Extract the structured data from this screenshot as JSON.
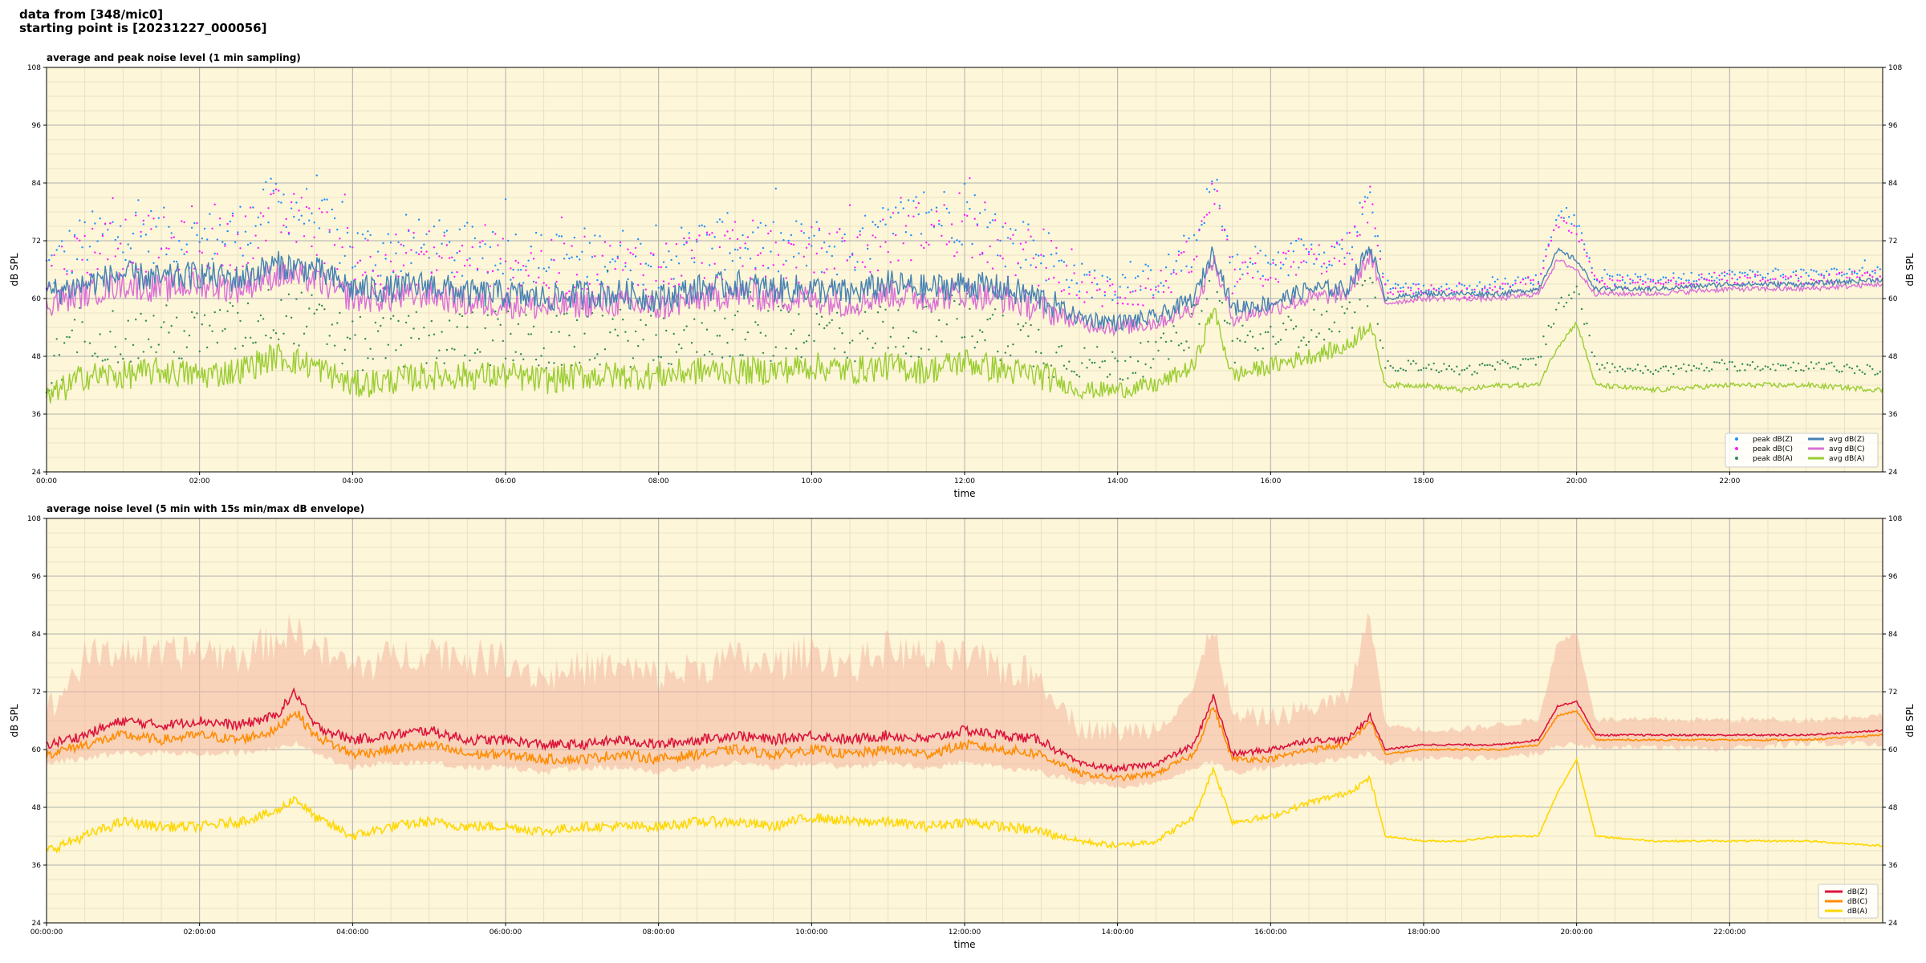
{
  "header": {
    "line1": "data from [348/mic0]",
    "line2": "starting point is [20231227_000056]"
  },
  "colors": {
    "plot_bg": "#fdf6d8",
    "peak_z": "#1e90ff",
    "peak_c": "#ff1aff",
    "peak_a": "#2e8b57",
    "avg_z": "#4682b4",
    "avg_c": "#da70d6",
    "avg_a": "#9acd32",
    "db_z": "#dc143c",
    "db_c": "#ff8c00",
    "db_a": "#ffd700",
    "envelope": "#f4b6a0"
  },
  "chart_data": [
    {
      "type": "line",
      "title": "average and peak noise level (1 min sampling)",
      "xlabel": "time",
      "ylabel": "dB SPL",
      "ylabel_right": "dB SPL",
      "ylim": [
        24,
        108
      ],
      "yticks": [
        "24",
        "36",
        "48",
        "60",
        "72",
        "84",
        "96",
        "108"
      ],
      "xlim": [
        0,
        24
      ],
      "xticks": [
        "00:00",
        "02:00",
        "04:00",
        "06:00",
        "08:00",
        "10:00",
        "12:00",
        "14:00",
        "16:00",
        "18:00",
        "20:00",
        "22:00"
      ],
      "grid": true,
      "legend_position": "lower-right",
      "legend": [
        "peak dB(Z)",
        "peak dB(C)",
        "peak dB(A)",
        "avg dB(Z)",
        "avg dB(C)",
        "avg dB(A)"
      ],
      "x": [
        0,
        0.5,
        1,
        1.5,
        2,
        2.5,
        3,
        3.5,
        4,
        4.5,
        5,
        5.5,
        6,
        6.5,
        7,
        7.5,
        8,
        8.5,
        9,
        9.5,
        10,
        10.5,
        11,
        11.5,
        12,
        12.5,
        13,
        13.5,
        14,
        14.5,
        15,
        15.25,
        15.5,
        16,
        16.5,
        17,
        17.3,
        17.5,
        18,
        18.5,
        19,
        19.5,
        19.75,
        20,
        20.25,
        21,
        22,
        23,
        24
      ],
      "series": [
        {
          "name": "avg dB(Z)",
          "style": "line",
          "values": [
            61,
            63,
            65,
            64,
            65,
            64,
            67,
            66,
            62,
            62,
            63,
            61,
            61,
            60,
            61,
            61,
            60,
            62,
            63,
            62,
            62,
            61,
            63,
            62,
            63,
            62,
            60,
            56,
            55,
            56,
            60,
            70,
            58,
            59,
            62,
            62,
            71,
            60,
            61,
            61,
            61,
            62,
            70,
            68,
            62,
            62,
            63,
            63,
            64
          ]
        },
        {
          "name": "avg dB(C)",
          "style": "line",
          "values": [
            59,
            61,
            63,
            62,
            63,
            62,
            65,
            64,
            60,
            60,
            61,
            59,
            59,
            58,
            59,
            59,
            58,
            60,
            61,
            60,
            60,
            59,
            61,
            60,
            61,
            60,
            58,
            55,
            54,
            55,
            58,
            68,
            56,
            58,
            60,
            61,
            69,
            59,
            60,
            60,
            60,
            61,
            68,
            66,
            61,
            61,
            62,
            62,
            63
          ]
        },
        {
          "name": "avg dB(A)",
          "style": "line",
          "values": [
            39,
            44,
            44,
            45,
            44,
            45,
            48,
            46,
            42,
            43,
            44,
            44,
            44,
            43,
            44,
            44,
            44,
            45,
            45,
            45,
            46,
            45,
            46,
            45,
            47,
            45,
            44,
            41,
            41,
            42,
            46,
            58,
            44,
            46,
            48,
            50,
            55,
            42,
            42,
            41,
            42,
            42,
            50,
            55,
            42,
            41,
            42,
            42,
            41
          ]
        },
        {
          "name": "peak dB(Z)",
          "style": "points",
          "values": [
            66,
            72,
            74,
            73,
            72,
            74,
            80,
            77,
            70,
            70,
            71,
            69,
            70,
            68,
            69,
            69,
            68,
            71,
            72,
            70,
            71,
            70,
            74,
            78,
            77,
            72,
            70,
            64,
            63,
            64,
            70,
            84,
            66,
            67,
            70,
            70,
            82,
            63,
            62,
            62,
            63,
            64,
            78,
            76,
            64,
            64,
            65,
            65,
            66
          ]
        },
        {
          "name": "peak dB(C)",
          "style": "points",
          "values": [
            64,
            70,
            72,
            71,
            70,
            72,
            77,
            75,
            68,
            68,
            69,
            67,
            68,
            66,
            67,
            67,
            66,
            69,
            70,
            68,
            69,
            68,
            72,
            75,
            74,
            70,
            68,
            62,
            61,
            62,
            68,
            82,
            64,
            66,
            68,
            69,
            80,
            62,
            61,
            61,
            62,
            63,
            76,
            74,
            63,
            63,
            64,
            64,
            65
          ]
        },
        {
          "name": "peak dB(A)",
          "style": "points",
          "values": [
            44,
            54,
            52,
            53,
            52,
            54,
            57,
            55,
            50,
            51,
            52,
            51,
            52,
            50,
            52,
            52,
            51,
            53,
            53,
            52,
            54,
            52,
            55,
            53,
            56,
            53,
            50,
            47,
            46,
            48,
            54,
            66,
            50,
            52,
            54,
            56,
            62,
            46,
            46,
            45,
            46,
            47,
            58,
            62,
            46,
            45,
            46,
            46,
            45
          ]
        }
      ]
    },
    {
      "type": "line",
      "title": "average noise level (5 min with 15s min/max dB envelope)",
      "xlabel": "time",
      "ylabel": "dB SPL",
      "ylabel_right": "dB SPL",
      "ylim": [
        24,
        108
      ],
      "yticks": [
        "24",
        "36",
        "48",
        "60",
        "72",
        "84",
        "96",
        "108"
      ],
      "xlim": [
        0,
        24
      ],
      "xticks": [
        "00:00:00",
        "02:00:00",
        "04:00:00",
        "06:00:00",
        "08:00:00",
        "10:00:00",
        "12:00:00",
        "14:00:00",
        "16:00:00",
        "18:00:00",
        "20:00:00",
        "22:00:00"
      ],
      "grid": true,
      "legend_position": "lower-right",
      "legend": [
        "dB(Z)",
        "dB(C)",
        "dB(A)"
      ],
      "x": [
        0,
        0.5,
        1,
        1.5,
        2,
        2.5,
        3,
        3.25,
        3.5,
        4,
        4.5,
        5,
        5.5,
        6,
        6.5,
        7,
        7.5,
        8,
        8.5,
        9,
        9.5,
        10,
        10.5,
        11,
        11.5,
        12,
        12.5,
        13,
        13.5,
        14,
        14.5,
        15,
        15.25,
        15.5,
        16,
        16.5,
        17,
        17.3,
        17.5,
        18,
        18.5,
        19,
        19.5,
        19.75,
        20,
        20.25,
        21,
        22,
        23,
        24
      ],
      "series": [
        {
          "name": "dB(Z)",
          "style": "line",
          "values": [
            61,
            63,
            66,
            65,
            66,
            65,
            67,
            72,
            65,
            62,
            63,
            64,
            62,
            62,
            61,
            61,
            62,
            61,
            62,
            63,
            62,
            63,
            62,
            63,
            62,
            64,
            63,
            62,
            57,
            56,
            57,
            61,
            71,
            59,
            60,
            62,
            62,
            67,
            60,
            61,
            61,
            61,
            62,
            69,
            70,
            63,
            63,
            63,
            63,
            64
          ]
        },
        {
          "name": "dB(C)",
          "style": "line",
          "values": [
            59,
            61,
            63,
            62,
            63,
            62,
            64,
            68,
            63,
            59,
            60,
            61,
            59,
            59,
            58,
            58,
            59,
            58,
            59,
            60,
            59,
            60,
            59,
            60,
            59,
            61,
            60,
            59,
            55,
            54,
            55,
            59,
            69,
            58,
            58,
            60,
            61,
            66,
            59,
            60,
            60,
            60,
            61,
            67,
            68,
            62,
            62,
            62,
            62,
            63
          ]
        },
        {
          "name": "dB(A)",
          "style": "line",
          "values": [
            39,
            42,
            45,
            44,
            44,
            45,
            47,
            50,
            46,
            42,
            44,
            45,
            44,
            44,
            43,
            44,
            44,
            44,
            45,
            45,
            44,
            46,
            45,
            45,
            44,
            45,
            44,
            43,
            41,
            40,
            41,
            46,
            56,
            45,
            46,
            49,
            51,
            54,
            42,
            41,
            41,
            42,
            42,
            51,
            58,
            42,
            41,
            41,
            41,
            40
          ]
        },
        {
          "name": "envelope-max",
          "style": "band-max",
          "values": [
            66,
            78,
            80,
            78,
            80,
            78,
            82,
            84,
            80,
            76,
            78,
            80,
            78,
            78,
            74,
            76,
            76,
            74,
            76,
            78,
            76,
            80,
            76,
            80,
            78,
            78,
            76,
            74,
            64,
            63,
            64,
            72,
            86,
            66,
            66,
            68,
            70,
            88,
            65,
            64,
            64,
            65,
            66,
            82,
            84,
            66,
            66,
            66,
            66,
            67
          ]
        },
        {
          "name": "envelope-min",
          "style": "band-min",
          "values": [
            58,
            59,
            60,
            60,
            60,
            60,
            61,
            62,
            60,
            57,
            58,
            58,
            57,
            57,
            56,
            57,
            57,
            56,
            57,
            58,
            57,
            58,
            57,
            58,
            57,
            58,
            57,
            56,
            54,
            53,
            54,
            57,
            58,
            56,
            57,
            58,
            59,
            60,
            58,
            59,
            59,
            59,
            60,
            61,
            62,
            61,
            61,
            61,
            62,
            62
          ]
        }
      ]
    }
  ]
}
